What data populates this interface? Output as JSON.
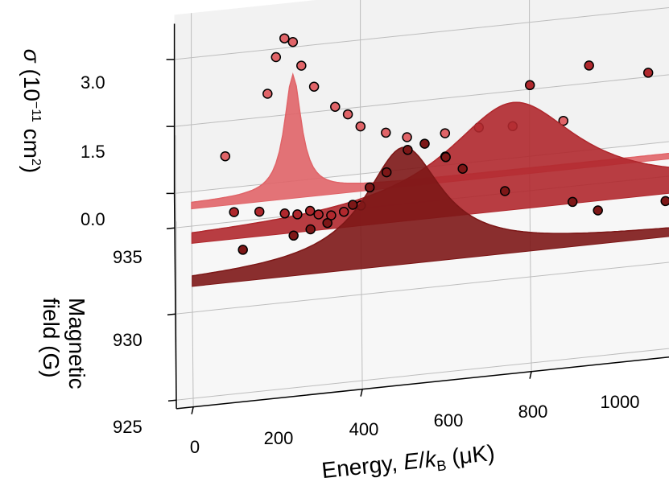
{
  "chart_data": {
    "type": "3d-waterfall",
    "x_label": "Energy, E/kB (μK)",
    "x_ticks": [
      "0",
      "200",
      "400",
      "600",
      "800",
      "1000"
    ],
    "y_label": [
      "Magnetic",
      "field (G)"
    ],
    "y_ticks": [
      "935",
      "930",
      "925"
    ],
    "z_label": "σ (10⁻¹¹ cm²)",
    "z_ticks": [
      "3.0",
      "1.5",
      "0.0"
    ],
    "colors": {
      "front": "#7d1717",
      "mid": "#b0282d",
      "back": "#e06468",
      "grid": "#bdbdbd"
    },
    "series": [
      {
        "field_G": 936,
        "fill": "#e06468",
        "curve": {
          "peak_x": 120,
          "width": 12,
          "height": 2.65,
          "baseline": 0.12
        },
        "points": [
          [
            40,
            1.1
          ],
          [
            90,
            2.4
          ],
          [
            100,
            3.2
          ],
          [
            110,
            3.6
          ],
          [
            120,
            3.5
          ],
          [
            130,
            2.95
          ],
          [
            145,
            2.45
          ],
          [
            170,
            1.95
          ],
          [
            185,
            1.75
          ],
          [
            200,
            1.45
          ],
          [
            230,
            1.25
          ],
          [
            255,
            1.1
          ],
          [
            300,
            1.1
          ],
          [
            340,
            1.15
          ],
          [
            380,
            1.1
          ],
          [
            440,
            1.1
          ],
          [
            590,
            1.15
          ]
        ]
      },
      {
        "field_G": 934,
        "fill": "#b0282d",
        "curve": {
          "peak_x": 380,
          "width": 95,
          "height": 2.3,
          "baseline": 0.1
        },
        "points": [
          [
            50,
            0.6
          ],
          [
            80,
            0.55
          ],
          [
            110,
            0.45
          ],
          [
            125,
            0.4
          ],
          [
            140,
            0.45
          ],
          [
            150,
            0.35
          ],
          [
            165,
            0.3
          ],
          [
            180,
            0.35
          ],
          [
            200,
            0.45
          ],
          [
            300,
            1.35
          ],
          [
            400,
            2.75
          ],
          [
            470,
            3.05
          ],
          [
            540,
            2.75
          ],
          [
            610,
            2.0
          ],
          [
            820,
            1.6
          ]
        ]
      },
      {
        "field_G": 931.5,
        "fill": "#7d1717",
        "curve": {
          "peak_x": 250,
          "width": 55,
          "height": 2.5,
          "baseline": 0.12
        },
        "points": [
          [
            60,
            0.7
          ],
          [
            120,
            0.9
          ],
          [
            140,
            1.0
          ],
          [
            160,
            1.1
          ],
          [
            190,
            1.45
          ],
          [
            210,
            1.8
          ],
          [
            230,
            2.1
          ],
          [
            255,
            2.55
          ],
          [
            275,
            2.65
          ],
          [
            300,
            2.3
          ],
          [
            320,
            2.0
          ],
          [
            370,
            1.4
          ],
          [
            450,
            1.0
          ],
          [
            480,
            0.75
          ],
          [
            560,
            0.8
          ],
          [
            620,
            0.5
          ],
          [
            840,
            0.45
          ]
        ]
      }
    ]
  }
}
